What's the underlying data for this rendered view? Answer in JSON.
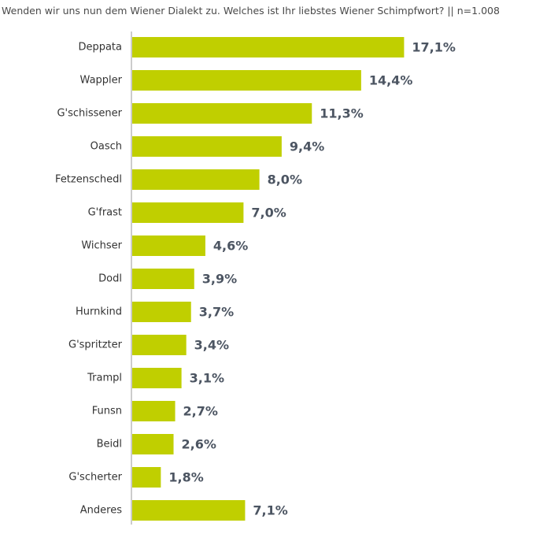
{
  "chart_data": {
    "type": "bar",
    "orientation": "horizontal",
    "title": "Wenden wir uns nun dem Wiener Dialekt zu. Welches ist Ihr liebstes Wiener Schimpfwort? || n=1.008",
    "categories": [
      "Deppata",
      "Wappler",
      "G'schissener",
      "Oasch",
      "Fetzenschedl",
      "G'frast",
      "Wichser",
      "Dodl",
      "Hurnkind",
      "G'spritzter",
      "Trampl",
      "Funsn",
      "Beidl",
      "G'scherter",
      "Anderes"
    ],
    "values": [
      17.1,
      14.4,
      11.3,
      9.4,
      8.0,
      7.0,
      4.6,
      3.9,
      3.7,
      3.4,
      3.1,
      2.7,
      2.6,
      1.8,
      7.1
    ],
    "value_labels": [
      "17,1%",
      "14,4%",
      "11,3%",
      "9,4%",
      "8,0%",
      "7,0%",
      "4,6%",
      "3,9%",
      "3,7%",
      "3,4%",
      "3,1%",
      "2,7%",
      "2,6%",
      "1,8%",
      "7,1%"
    ],
    "unit": "%",
    "bar_color": "#c0cf00",
    "value_label_color": "#4c5562",
    "grid": false,
    "legend": "none"
  }
}
